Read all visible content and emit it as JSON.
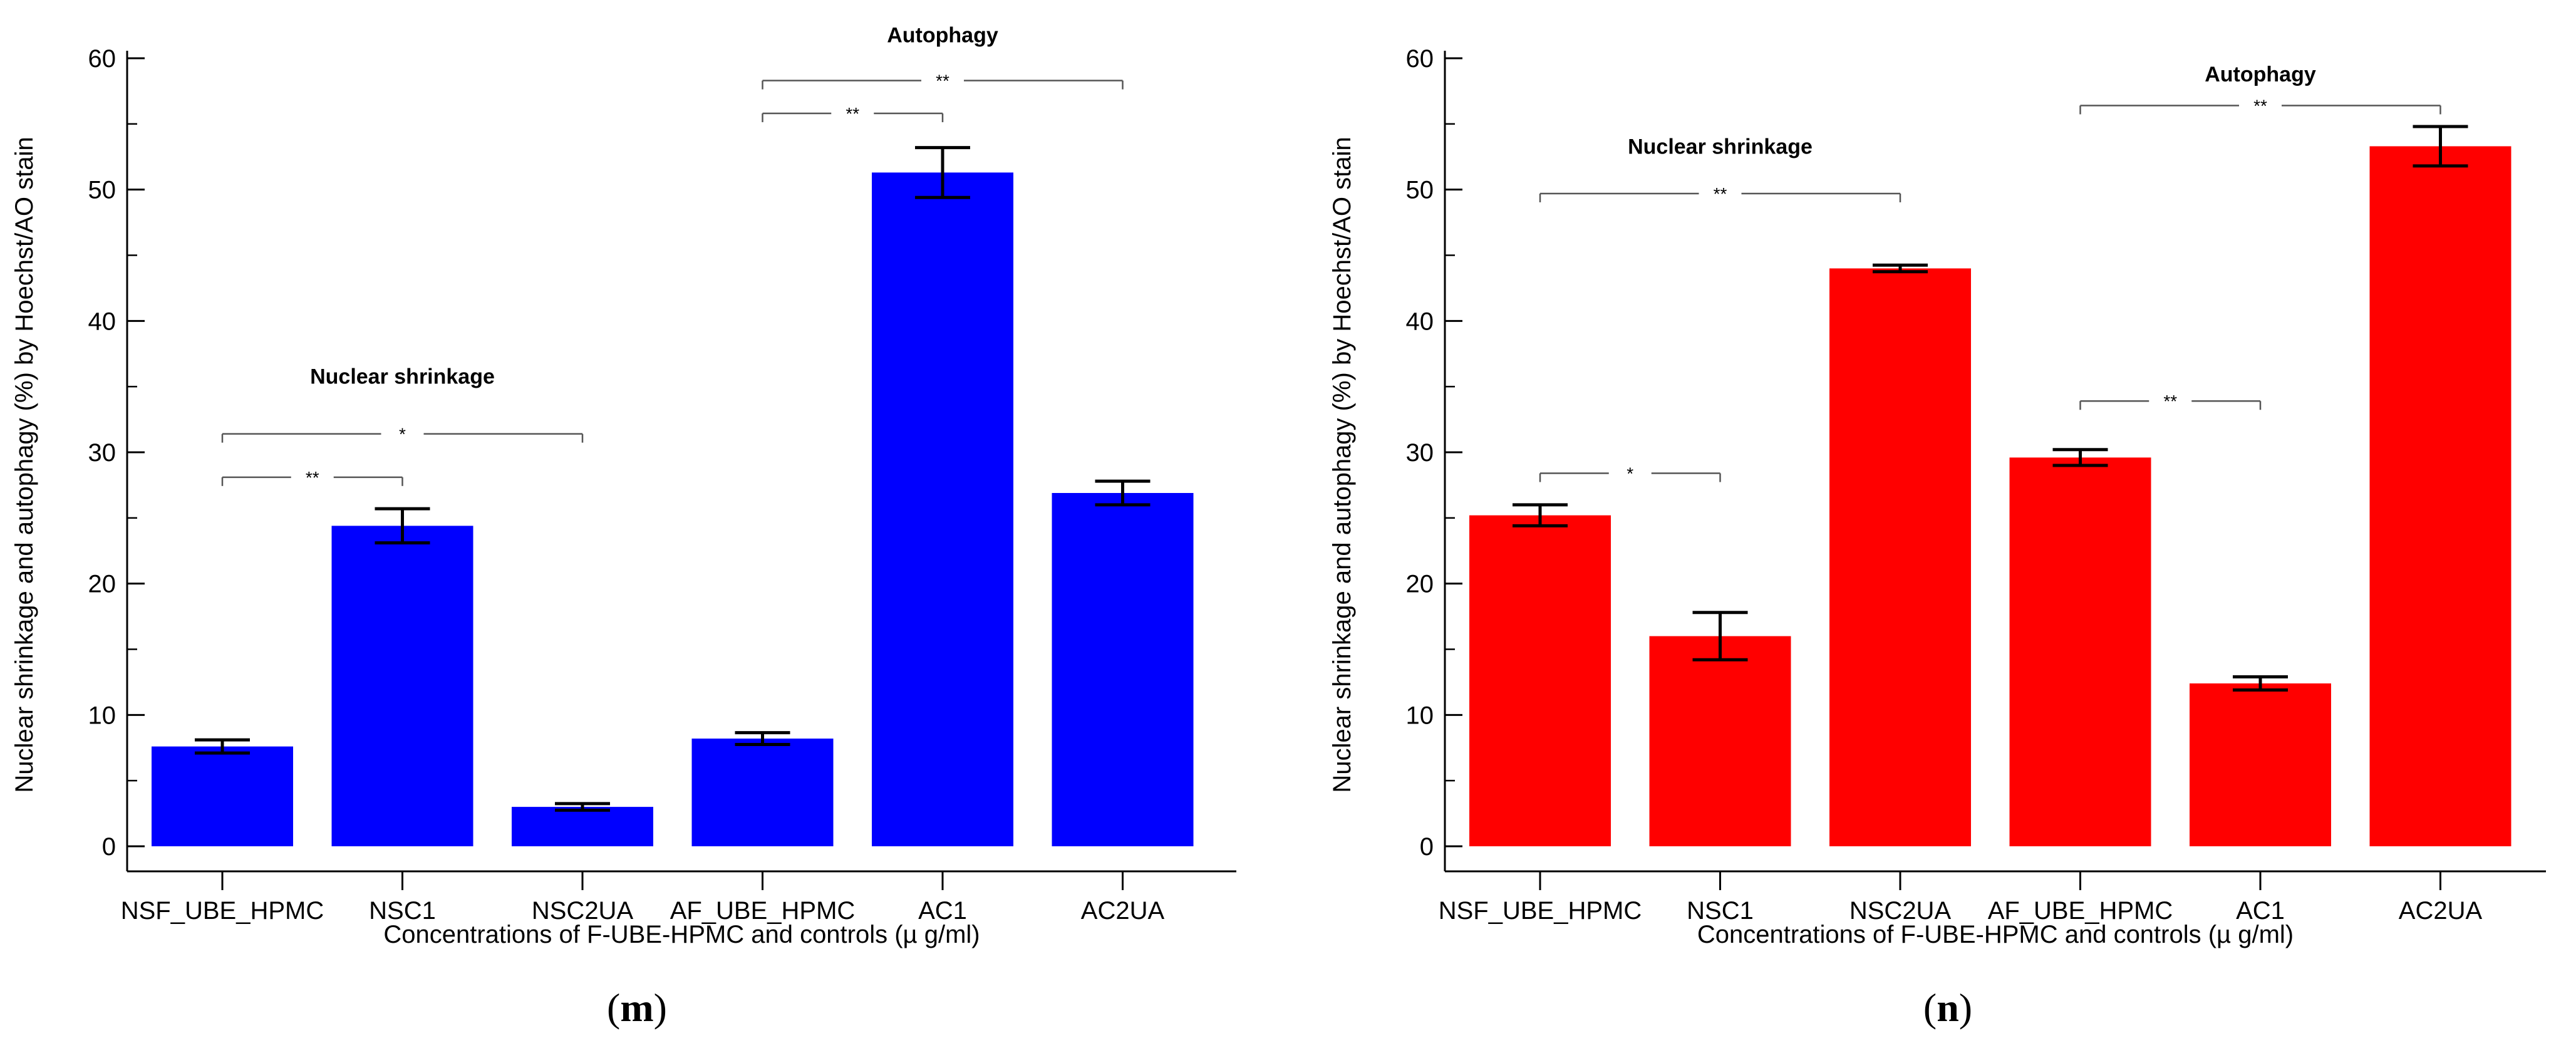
{
  "colors": {
    "panel_m_bar": "#0000ff",
    "panel_n_bar": "#ff0000",
    "axis": "#000000",
    "bracket": "#555555"
  },
  "chart_data": [
    {
      "id": "m",
      "type": "bar",
      "panel_label_open": "(",
      "panel_label_letter": "m",
      "panel_label_close": ")",
      "categories": [
        "NSF_UBE_HPMC",
        "NSC1",
        "NSC2UA",
        "AF_UBE_HPMC",
        "AC1",
        "AC2UA"
      ],
      "values": [
        7.6,
        24.4,
        3.0,
        8.2,
        51.3,
        26.9
      ],
      "errors": [
        0.5,
        1.3,
        0.25,
        0.45,
        1.9,
        0.9
      ],
      "xlabel": "Concentrations of F-UBE-HPMC and controls (µ g/ml)",
      "ylabel": "Nuclear shrinkage and autophagy (%) by Hoechst/AO stain",
      "ylim": [
        0,
        60
      ],
      "yticks": [
        0,
        10,
        20,
        30,
        40,
        50,
        60
      ],
      "annotations": [
        {
          "text": "Nuclear shrinkage",
          "x": 1.0,
          "y": 35.8
        },
        {
          "text": "Autophagy",
          "x": 4.0,
          "y": 61.8
        }
      ],
      "significance": [
        {
          "from": 0,
          "to": 1,
          "y": 28.1,
          "mark": "**"
        },
        {
          "from": 0,
          "to": 2,
          "y": 31.4,
          "mark": "*"
        },
        {
          "from": 3,
          "to": 4,
          "y": 55.8,
          "mark": "**"
        },
        {
          "from": 3,
          "to": 5,
          "y": 58.3,
          "mark": "**"
        }
      ]
    },
    {
      "id": "n",
      "type": "bar",
      "panel_label_open": "(",
      "panel_label_letter": "n",
      "panel_label_close": ")",
      "categories": [
        "NSF_UBE_HPMC",
        "NSC1",
        "NSC2UA",
        "AF_UBE_HPMC",
        "AC1",
        "AC2UA"
      ],
      "values": [
        25.2,
        16.0,
        44.0,
        29.6,
        12.4,
        53.3
      ],
      "errors": [
        0.8,
        1.8,
        0.25,
        0.6,
        0.5,
        1.5
      ],
      "xlabel": "Concentrations of F-UBE-HPMC and controls (µ g/ml)",
      "ylabel": "Nuclear shrinkage and autophagy (%) by Hoechst/AO stain",
      "ylim": [
        0,
        60
      ],
      "yticks": [
        0,
        10,
        20,
        30,
        40,
        50,
        60
      ],
      "annotations": [
        {
          "text": "Nuclear shrinkage",
          "x": 1.0,
          "y": 53.3
        },
        {
          "text": "Autophagy",
          "x": 4.0,
          "y": 58.8
        }
      ],
      "significance": [
        {
          "from": 0,
          "to": 2,
          "y": 49.7,
          "mark": "**"
        },
        {
          "from": 0,
          "to": 1,
          "y": 28.4,
          "mark": "*"
        },
        {
          "from": 3,
          "to": 4,
          "y": 33.9,
          "mark": "**"
        },
        {
          "from": 3,
          "to": 5,
          "y": 56.4,
          "mark": "**"
        }
      ]
    }
  ]
}
